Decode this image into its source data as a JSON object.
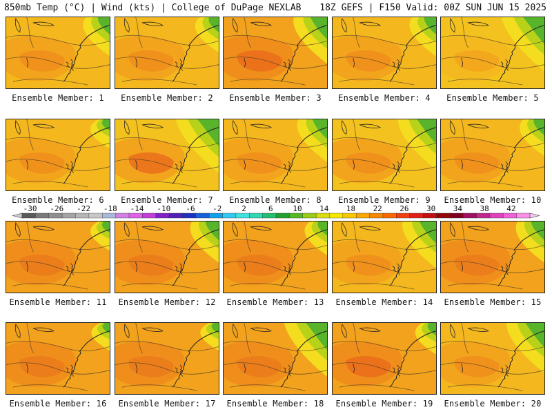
{
  "header": {
    "title": "850mb Temp (°C) | Wind (kts) | College of DuPage NEXLAB",
    "run_info": "18Z GEFS | F150 Valid: 00Z SUN JUN 15 2025"
  },
  "colorbar": {
    "tick_labels": [
      "-30",
      "-26",
      "-22",
      "-18",
      "-14",
      "-10",
      "-6",
      "-2",
      "2",
      "6",
      "10",
      "14",
      "18",
      "22",
      "26",
      "30",
      "34",
      "38",
      "42"
    ],
    "colors": [
      "#5a5a5a",
      "#7a7a7a",
      "#8f8f8f",
      "#a4a4a4",
      "#b6b6b6",
      "#c8c8c8",
      "#a8b8d8",
      "#d080e0",
      "#e060e8",
      "#c040d8",
      "#8020c8",
      "#5020b8",
      "#2030c0",
      "#1860d8",
      "#10a0e8",
      "#30c8f0",
      "#40e0e0",
      "#30d8b0",
      "#20c070",
      "#20a030",
      "#58b820",
      "#98cc18",
      "#d8dc10",
      "#f8e800",
      "#f8c800",
      "#f8a800",
      "#f88800",
      "#f86800",
      "#f04010",
      "#e02018",
      "#c01010",
      "#900808",
      "#800020",
      "#a01060",
      "#c02890",
      "#e040b8",
      "#f060d8",
      "#f890e8"
    ]
  },
  "members": [
    {
      "label": "Ensemble Member: 1"
    },
    {
      "label": "Ensemble Member: 2"
    },
    {
      "label": "Ensemble Member: 3"
    },
    {
      "label": "Ensemble Member: 4"
    },
    {
      "label": "Ensemble Member: 5"
    },
    {
      "label": "Ensemble Member: 6"
    },
    {
      "label": "Ensemble Member: 7"
    },
    {
      "label": "Ensemble Member: 8"
    },
    {
      "label": "Ensemble Member: 9"
    },
    {
      "label": "Ensemble Member: 10"
    },
    {
      "label": "Ensemble Member: 11"
    },
    {
      "label": "Ensemble Member: 12"
    },
    {
      "label": "Ensemble Member: 13"
    },
    {
      "label": "Ensemble Member: 14"
    },
    {
      "label": "Ensemble Member: 15"
    },
    {
      "label": "Ensemble Member: 16"
    },
    {
      "label": "Ensemble Member: 17"
    },
    {
      "label": "Ensemble Member: 18"
    },
    {
      "label": "Ensemble Member: 19"
    },
    {
      "label": "Ensemble Member: 20"
    }
  ]
}
